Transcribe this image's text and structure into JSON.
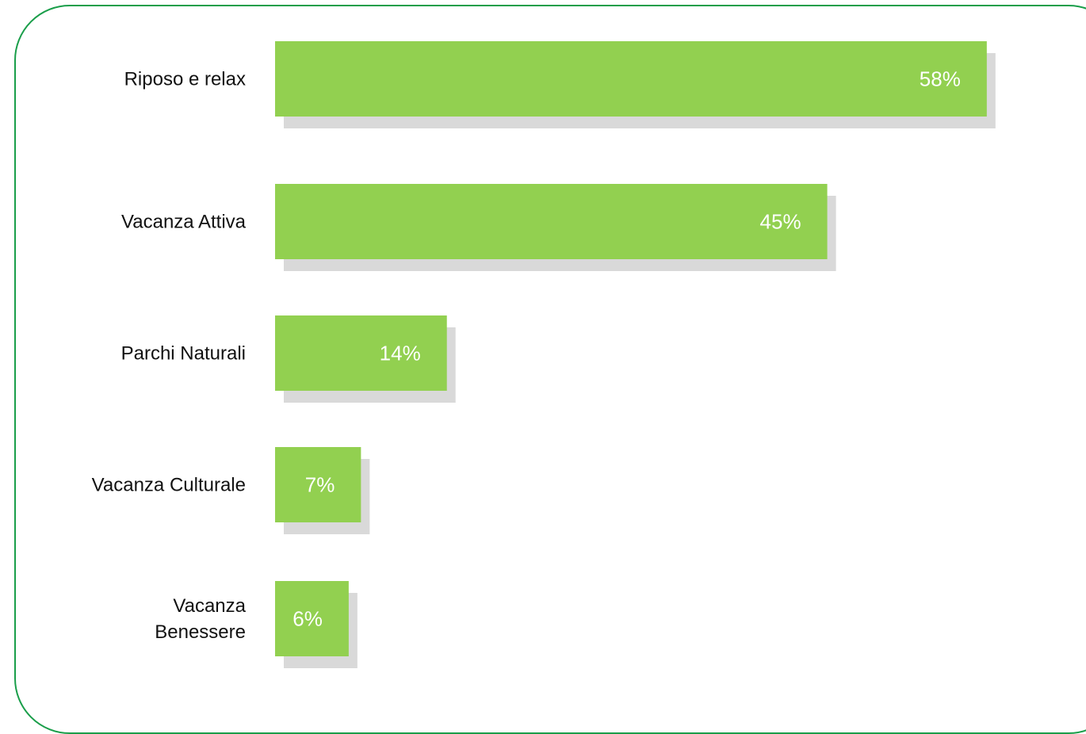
{
  "chart_data": {
    "type": "bar",
    "orientation": "horizontal",
    "categories": [
      "Riposo e relax",
      "Vacanza Attiva",
      "Parchi Naturali",
      "Vacanza Culturale",
      [
        "Vacanza",
        "Benessere"
      ]
    ],
    "values": [
      58,
      45,
      14,
      7,
      6
    ],
    "value_labels": [
      "58%",
      "45%",
      "14%",
      "7%",
      "6%"
    ],
    "unit": "%",
    "title": "",
    "xlabel": "",
    "ylabel": "",
    "grid": false,
    "legend": "none",
    "colors": {
      "bar": "#92d050",
      "shadow": "#d9d9d9",
      "frame": "#1a9e4a",
      "label": "#111111",
      "value_text": "#ffffff"
    }
  }
}
